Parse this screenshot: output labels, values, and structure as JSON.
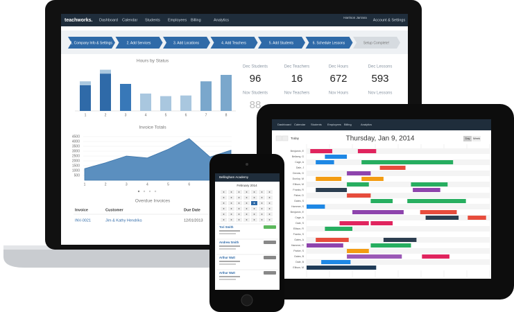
{
  "laptop": {
    "nav": {
      "brand": "teachworks.",
      "items": [
        "Dashboard",
        "Calendar",
        "Students",
        "Employees",
        "Billing",
        "Analytics"
      ],
      "user": "Harrison Jarrana",
      "account": "Account & Settings"
    },
    "steps": [
      "1. Company Info & Settings",
      "2. Add Services",
      "3. Add Locations",
      "4. Add Teachers",
      "5. Add Students",
      "6. Schedule Lessons",
      "Setup Complete!"
    ],
    "hours_chart": {
      "type": "bar",
      "title": "Hours by Status",
      "categories": [
        "1",
        "2",
        "3",
        "4",
        "5",
        "6",
        "7",
        "8"
      ],
      "values": [
        40,
        58,
        42,
        27,
        23,
        24,
        46,
        56
      ],
      "upper": [
        6,
        6,
        0,
        0,
        0,
        0,
        0,
        0
      ],
      "ylim": [
        0,
        70
      ]
    },
    "stats": [
      {
        "label": "Dec Students",
        "value": 96
      },
      {
        "label": "Dec Teachers",
        "value": 16
      },
      {
        "label": "Dec Hours",
        "value": 672
      },
      {
        "label": "Dec Lessons",
        "value": 593
      }
    ],
    "nov_stats": [
      "Nov Students",
      "Nov Teachers",
      "Nov Hours",
      "Nov Lessons"
    ],
    "nov_students": 88,
    "invoice_chart": {
      "type": "area",
      "title": "Invoice Totals",
      "categories": [
        "1",
        "2",
        "3",
        "4",
        "5",
        "6",
        "7",
        "8"
      ],
      "values": [
        1200,
        1800,
        2500,
        2300,
        3200,
        4300,
        2400,
        3100
      ],
      "ylim": [
        0,
        4500
      ],
      "yticks": [
        500,
        1000,
        1500,
        2000,
        2500,
        3000,
        3500,
        4000,
        4500
      ]
    },
    "overdue": {
      "title": "Overdue Invoices",
      "columns": [
        "Invoice",
        "Customer",
        "Due Date"
      ],
      "rows": [
        [
          "INV-0021",
          "Jim & Kathy Hendriks",
          "12/01/2013"
        ]
      ]
    }
  },
  "tablet": {
    "nav": [
      "Dashboard",
      "Calendar",
      "Students",
      "Employees",
      "Billing",
      "Analytics"
    ],
    "today": "Today",
    "date": "Thursday, Jan 9, 2014",
    "views": [
      "Day",
      "Week"
    ],
    "people": [
      "Benjamin, E",
      "Bellamy, G",
      "Cage, A",
      "Dale, J",
      "Dennis, G",
      "Dunlop, M",
      "Ellison, M",
      "Franks, R",
      "Fisher, D",
      "Gates, S",
      "Hammer, S",
      "Benjamin, E",
      "Cage, A",
      "Dale, S",
      "Ellison, R",
      "Franks, S",
      "Gates, A",
      "Hammer, R",
      "Parker, S",
      "Gates, B",
      "Dale, B",
      "Ellison, M"
    ]
  },
  "phone": {
    "header": "Bellingham Academy",
    "month": "February 2014",
    "lessons": [
      "Tori Smith",
      "Andrew Smith",
      "Arthur Watt",
      "Arthur Watt"
    ]
  }
}
